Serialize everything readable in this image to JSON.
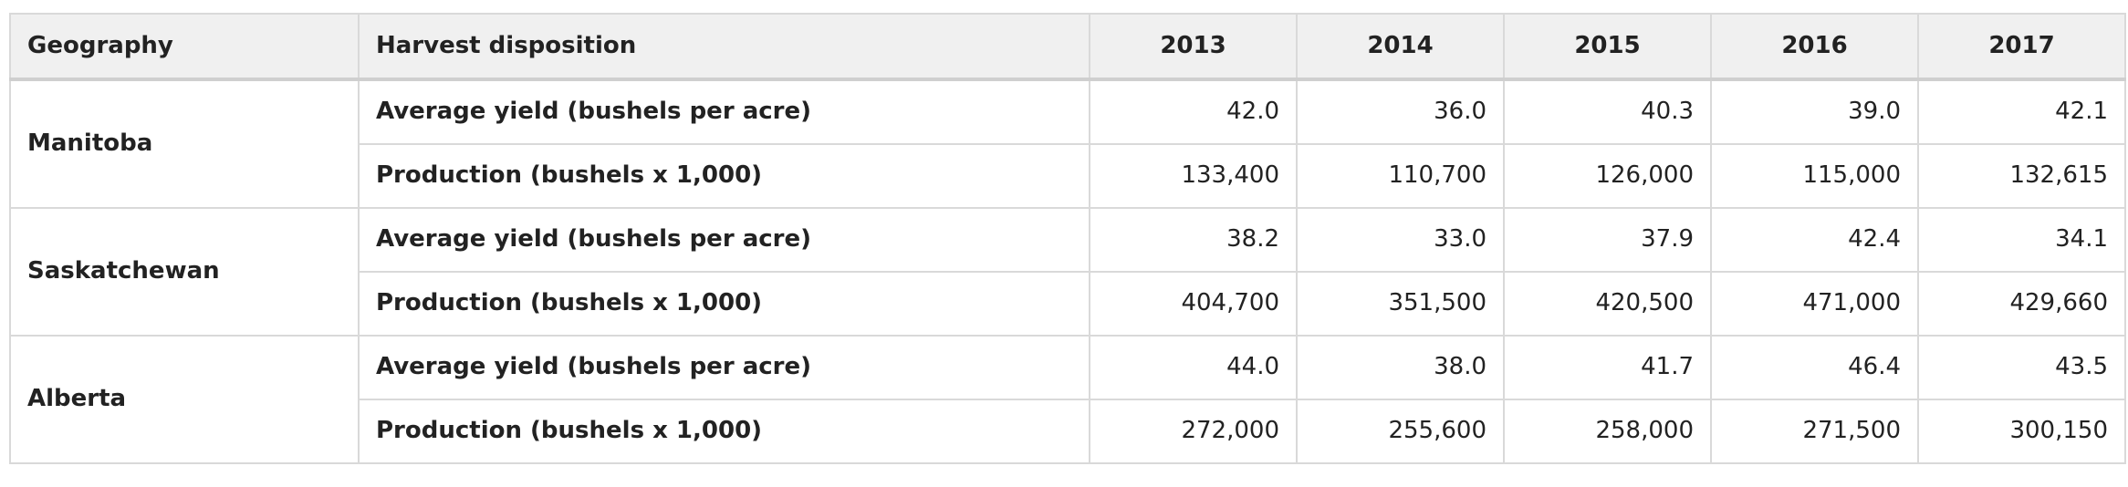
{
  "table": {
    "headers": {
      "geography": "Geography",
      "disposition": "Harvest disposition",
      "years": [
        "2013",
        "2014",
        "2015",
        "2016",
        "2017"
      ]
    },
    "groups": [
      {
        "geography": "Manitoba",
        "rows": [
          {
            "label": "Average yield (bushels per acre)",
            "values": [
              "42.0",
              "36.0",
              "40.3",
              "39.0",
              "42.1"
            ]
          },
          {
            "label": "Production (bushels x 1,000)",
            "values": [
              "133,400",
              "110,700",
              "126,000",
              "115,000",
              "132,615"
            ]
          }
        ]
      },
      {
        "geography": "Saskatchewan",
        "rows": [
          {
            "label": "Average yield (bushels per acre)",
            "values": [
              "38.2",
              "33.0",
              "37.9",
              "42.4",
              "34.1"
            ]
          },
          {
            "label": "Production (bushels x 1,000)",
            "values": [
              "404,700",
              "351,500",
              "420,500",
              "471,000",
              "429,660"
            ]
          }
        ]
      },
      {
        "geography": "Alberta",
        "rows": [
          {
            "label": "Average yield (bushels per acre)",
            "values": [
              "44.0",
              "38.0",
              "41.7",
              "46.4",
              "43.5"
            ]
          },
          {
            "label": "Production (bushels x 1,000)",
            "values": [
              "272,000",
              "255,600",
              "258,000",
              "271,500",
              "300,150"
            ]
          }
        ]
      }
    ]
  }
}
